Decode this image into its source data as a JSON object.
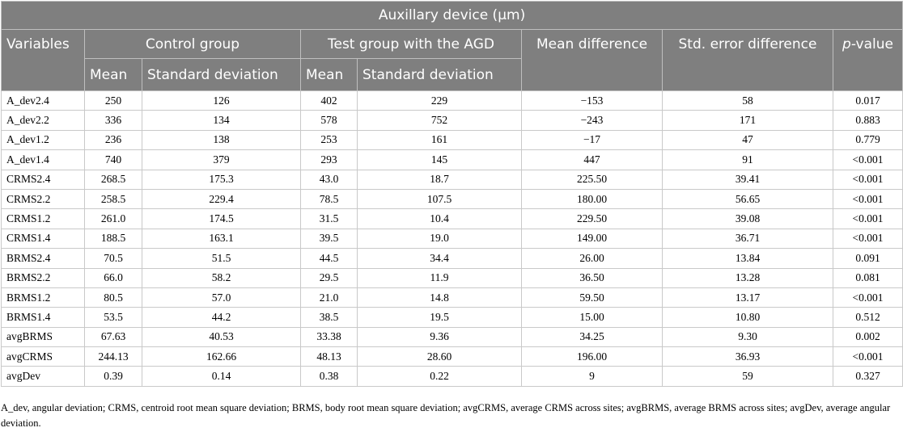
{
  "table": {
    "title": "Auxillary device (μm)",
    "headers": {
      "variables": "Variables",
      "control_group": "Control group",
      "test_group": "Test group with the AGD",
      "mean_difference": "Mean difference",
      "std_error_difference": "Std. error difference",
      "p_value_italic": "p",
      "p_value_rest": "-value",
      "control_mean": "Mean",
      "control_sd": "Standard deviation",
      "test_mean": "Mean",
      "test_sd": "Standard deviation"
    },
    "rows": [
      [
        "A_dev2.4",
        "250",
        "126",
        "402",
        "229",
        "−153",
        "58",
        "0.017"
      ],
      [
        "A_dev2.2",
        "336",
        "134",
        "578",
        "752",
        "−243",
        "171",
        "0.883"
      ],
      [
        "A_dev1.2",
        "236",
        "138",
        "253",
        "161",
        "−17",
        "47",
        "0.779"
      ],
      [
        "A_dev1.4",
        "740",
        "379",
        "293",
        "145",
        "447",
        "91",
        "<0.001"
      ],
      [
        "CRMS2.4",
        "268.5",
        "175.3",
        "43.0",
        "18.7",
        "225.50",
        "39.41",
        "<0.001"
      ],
      [
        "CRMS2.2",
        "258.5",
        "229.4",
        "78.5",
        "107.5",
        "180.00",
        "56.65",
        "<0.001"
      ],
      [
        "CRMS1.2",
        "261.0",
        "174.5",
        "31.5",
        "10.4",
        "229.50",
        "39.08",
        "<0.001"
      ],
      [
        "CRMS1.4",
        "188.5",
        "163.1",
        "39.5",
        "19.0",
        "149.00",
        "36.71",
        "<0.001"
      ],
      [
        "BRMS2.4",
        "70.5",
        "51.5",
        "44.5",
        "34.4",
        "26.00",
        "13.84",
        "0.091"
      ],
      [
        "BRMS2.2",
        "66.0",
        "58.2",
        "29.5",
        "11.9",
        "36.50",
        "13.28",
        "0.081"
      ],
      [
        "BRMS1.2",
        "80.5",
        "57.0",
        "21.0",
        "14.8",
        "59.50",
        "13.17",
        "<0.001"
      ],
      [
        "BRMS1.4",
        "53.5",
        "44.2",
        "38.5",
        "19.5",
        "15.00",
        "10.80",
        "0.512"
      ],
      [
        "avgBRMS",
        "67.63",
        "40.53",
        "33.38",
        "9.36",
        "34.25",
        "9.30",
        "0.002"
      ],
      [
        "avgCRMS",
        "244.13",
        "162.66",
        "48.13",
        "28.60",
        "196.00",
        "36.93",
        "<0.001"
      ],
      [
        "avgDev",
        "0.39",
        "0.14",
        "0.38",
        "0.22",
        "9",
        "59",
        "0.327"
      ]
    ]
  },
  "footnote": "A_dev, angular deviation; CRMS, centroid root mean square deviation; BRMS, body root mean square deviation; avgCRMS, average CRMS across sites; avgBRMS, average BRMS across sites; avgDev, average angular deviation."
}
